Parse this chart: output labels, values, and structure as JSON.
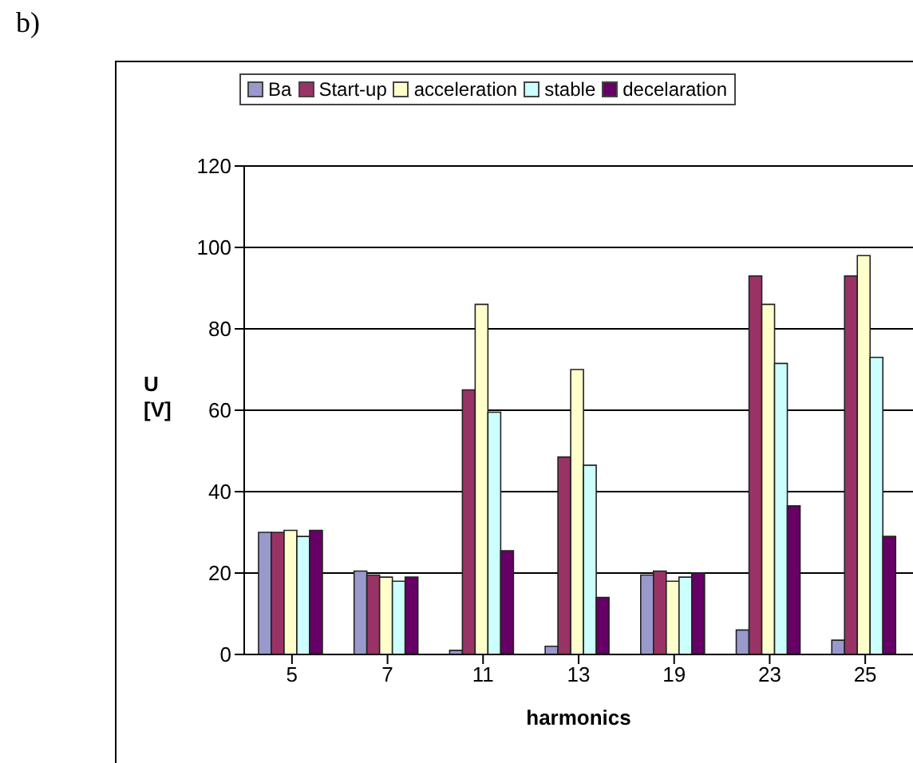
{
  "chart_data": {
    "type": "bar",
    "title": "b)",
    "xlabel": "harmonics",
    "ylabel": "U [V]",
    "categories": [
      "5",
      "7",
      "11",
      "13",
      "19",
      "23",
      "25"
    ],
    "series": [
      {
        "name": "Ba",
        "color": "#9999cc",
        "values": [
          30,
          20.5,
          1,
          2,
          19.5,
          6,
          3.5
        ]
      },
      {
        "name": "Start-up",
        "color": "#993366",
        "values": [
          30,
          19.5,
          65,
          48.5,
          20.5,
          93,
          93
        ]
      },
      {
        "name": "acceleration",
        "color": "#ffffcc",
        "values": [
          30.5,
          19,
          86,
          70,
          18,
          86,
          98
        ]
      },
      {
        "name": "stable",
        "color": "#ccffff",
        "values": [
          29,
          18,
          59.5,
          46.5,
          19,
          71.5,
          73
        ]
      },
      {
        "name": "decelaration",
        "color": "#660066",
        "values": [
          30.5,
          19,
          25.5,
          14,
          20,
          36.5,
          29
        ]
      }
    ],
    "ylim": [
      0,
      120
    ],
    "yticks": [
      0,
      20,
      40,
      60,
      80,
      100,
      120
    ],
    "grid": "y",
    "legend": "top"
  }
}
